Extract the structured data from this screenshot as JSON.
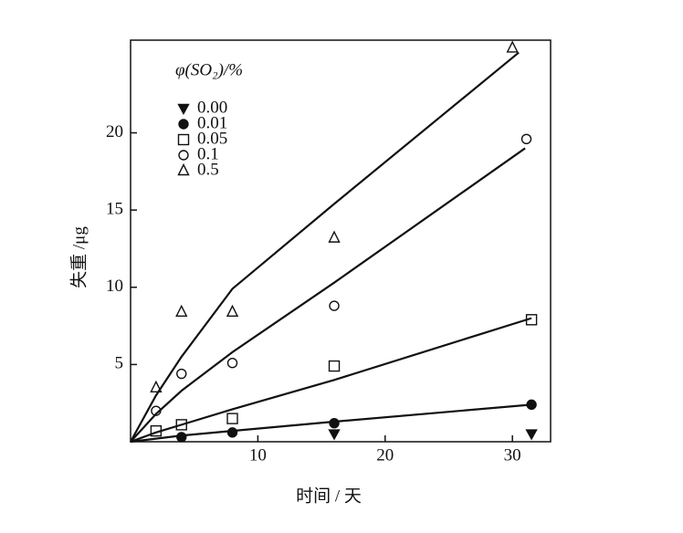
{
  "chart_data": {
    "type": "scatter",
    "x_label": "时间 / 天",
    "y_label": "失重 /μg",
    "legend_title": "φ(SO₂)/%",
    "legend_position": "upper left",
    "xlim": [
      0,
      33
    ],
    "ylim": [
      0,
      26
    ],
    "xticks": [
      10,
      20,
      30
    ],
    "yticks": [
      5,
      10,
      15,
      20
    ],
    "color": "#111111",
    "series": [
      {
        "name": "0.00",
        "marker": "triangle-down",
        "x": [
          16,
          31.5
        ],
        "values": [
          0.5,
          0.5
        ]
      },
      {
        "name": "0.01",
        "marker": "circle-filled",
        "x": [
          4,
          8,
          16,
          31.5
        ],
        "values": [
          0.3,
          0.6,
          1.2,
          2.4
        ]
      },
      {
        "name": "0.05",
        "marker": "square",
        "x": [
          2,
          4,
          8,
          16,
          31.5
        ],
        "values": [
          0.7,
          1.1,
          1.5,
          4.9,
          7.9
        ]
      },
      {
        "name": "0.1",
        "marker": "circle",
        "x": [
          2,
          4,
          8,
          16,
          31.1
        ],
        "values": [
          2.0,
          4.4,
          5.1,
          8.8,
          19.6
        ]
      },
      {
        "name": "0.5",
        "marker": "triangle",
        "x": [
          2,
          4,
          8,
          16,
          30
        ],
        "values": [
          3.5,
          8.4,
          8.4,
          13.2,
          25.5
        ]
      }
    ],
    "fits": [
      {
        "x": [
          0,
          4,
          8,
          16,
          31.5
        ],
        "values": [
          0,
          0.4,
          0.7,
          1.3,
          2.4
        ]
      },
      {
        "x": [
          0,
          2,
          4,
          8,
          16,
          31.5
        ],
        "values": [
          0,
          0.6,
          1.1,
          2.1,
          4.0,
          8.0
        ]
      },
      {
        "x": [
          0,
          2,
          4,
          8,
          16,
          31
        ],
        "values": [
          0,
          1.8,
          3.3,
          5.8,
          10.3,
          19.0
        ]
      },
      {
        "x": [
          0,
          2,
          4,
          8,
          16,
          30.5
        ],
        "values": [
          0,
          3.0,
          5.5,
          9.9,
          15.4,
          25.2
        ]
      }
    ]
  }
}
